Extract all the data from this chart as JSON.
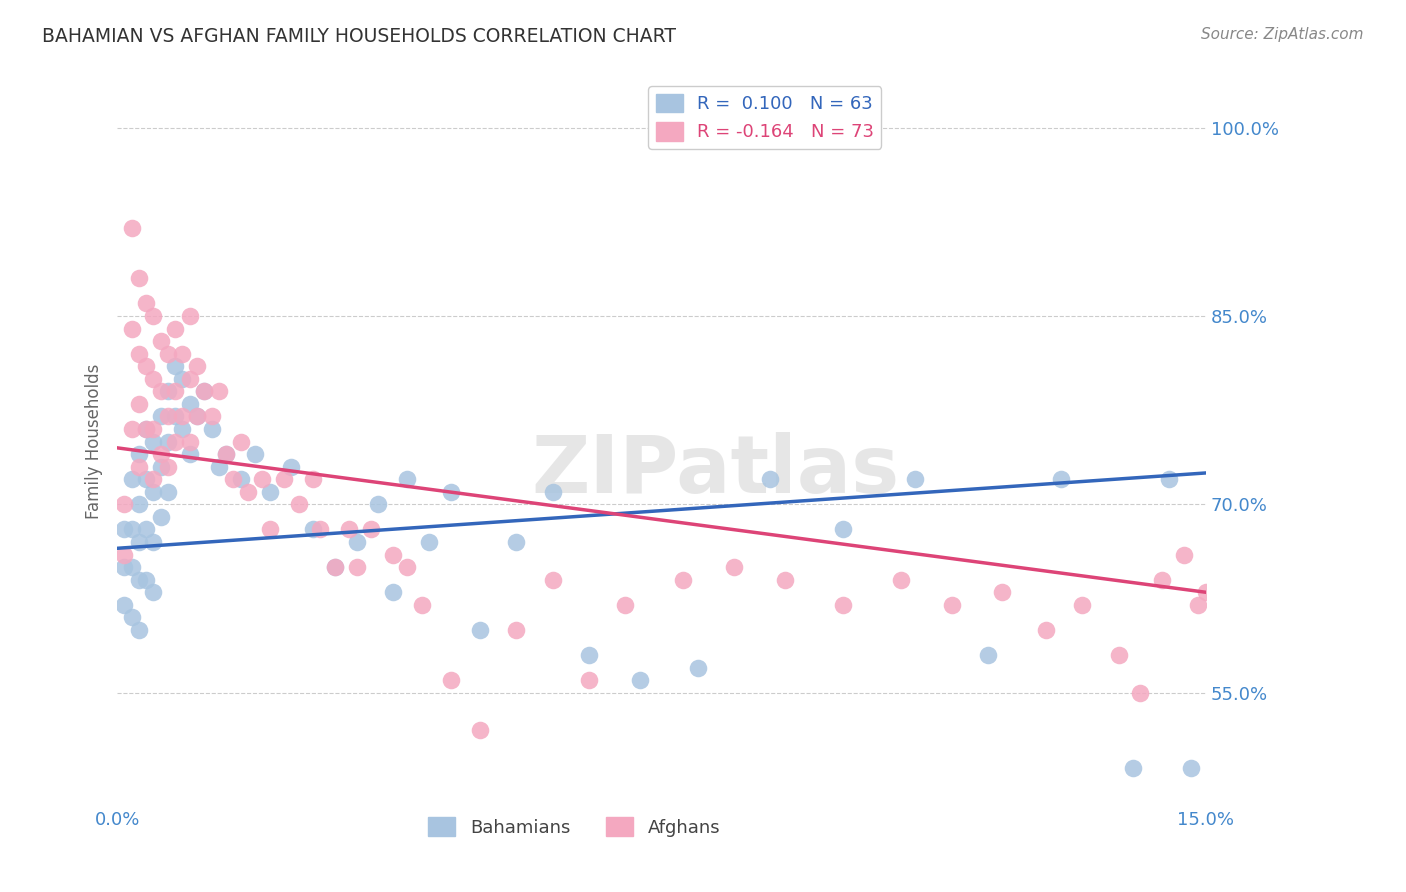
{
  "title": "BAHAMIAN VS AFGHAN FAMILY HOUSEHOLDS CORRELATION CHART",
  "source": "Source: ZipAtlas.com",
  "ylabel": "Family Households",
  "ytick_labels": [
    "55.0%",
    "70.0%",
    "85.0%",
    "100.0%"
  ],
  "ytick_vals": [
    0.55,
    0.7,
    0.85,
    1.0
  ],
  "xlim": [
    0.0,
    0.15
  ],
  "ylim": [
    0.46,
    1.04
  ],
  "blue_R": 0.1,
  "blue_N": 63,
  "pink_R": -0.164,
  "pink_N": 73,
  "blue_color": "#a8c4e0",
  "pink_color": "#f4a8c0",
  "blue_line_color": "#3366bb",
  "pink_line_color": "#dd4477",
  "watermark": "ZIPatlas",
  "background_color": "#ffffff",
  "grid_color": "#cccccc",
  "blue_x": [
    0.001,
    0.001,
    0.001,
    0.002,
    0.002,
    0.002,
    0.002,
    0.003,
    0.003,
    0.003,
    0.003,
    0.003,
    0.004,
    0.004,
    0.004,
    0.004,
    0.005,
    0.005,
    0.005,
    0.005,
    0.006,
    0.006,
    0.006,
    0.007,
    0.007,
    0.007,
    0.008,
    0.008,
    0.009,
    0.009,
    0.01,
    0.01,
    0.011,
    0.012,
    0.013,
    0.014,
    0.015,
    0.017,
    0.019,
    0.021,
    0.024,
    0.027,
    0.03,
    0.033,
    0.036,
    0.038,
    0.04,
    0.043,
    0.046,
    0.05,
    0.055,
    0.06,
    0.065,
    0.072,
    0.08,
    0.09,
    0.1,
    0.11,
    0.12,
    0.13,
    0.14,
    0.145,
    0.148
  ],
  "blue_y": [
    0.68,
    0.65,
    0.62,
    0.72,
    0.68,
    0.65,
    0.61,
    0.74,
    0.7,
    0.67,
    0.64,
    0.6,
    0.76,
    0.72,
    0.68,
    0.64,
    0.75,
    0.71,
    0.67,
    0.63,
    0.77,
    0.73,
    0.69,
    0.79,
    0.75,
    0.71,
    0.81,
    0.77,
    0.8,
    0.76,
    0.78,
    0.74,
    0.77,
    0.79,
    0.76,
    0.73,
    0.74,
    0.72,
    0.74,
    0.71,
    0.73,
    0.68,
    0.65,
    0.67,
    0.7,
    0.63,
    0.72,
    0.67,
    0.71,
    0.6,
    0.67,
    0.71,
    0.58,
    0.56,
    0.57,
    0.72,
    0.68,
    0.72,
    0.58,
    0.72,
    0.49,
    0.72,
    0.49
  ],
  "pink_x": [
    0.001,
    0.001,
    0.002,
    0.002,
    0.002,
    0.003,
    0.003,
    0.003,
    0.003,
    0.004,
    0.004,
    0.004,
    0.005,
    0.005,
    0.005,
    0.005,
    0.006,
    0.006,
    0.006,
    0.007,
    0.007,
    0.007,
    0.008,
    0.008,
    0.008,
    0.009,
    0.009,
    0.01,
    0.01,
    0.01,
    0.011,
    0.011,
    0.012,
    0.013,
    0.014,
    0.015,
    0.016,
    0.017,
    0.018,
    0.02,
    0.021,
    0.023,
    0.025,
    0.027,
    0.028,
    0.03,
    0.032,
    0.033,
    0.035,
    0.038,
    0.04,
    0.042,
    0.046,
    0.05,
    0.055,
    0.06,
    0.065,
    0.07,
    0.078,
    0.085,
    0.092,
    0.1,
    0.108,
    0.115,
    0.122,
    0.128,
    0.133,
    0.138,
    0.141,
    0.144,
    0.147,
    0.149,
    0.15
  ],
  "pink_y": [
    0.7,
    0.66,
    0.92,
    0.84,
    0.76,
    0.88,
    0.82,
    0.78,
    0.73,
    0.86,
    0.81,
    0.76,
    0.85,
    0.8,
    0.76,
    0.72,
    0.83,
    0.79,
    0.74,
    0.82,
    0.77,
    0.73,
    0.84,
    0.79,
    0.75,
    0.82,
    0.77,
    0.85,
    0.8,
    0.75,
    0.81,
    0.77,
    0.79,
    0.77,
    0.79,
    0.74,
    0.72,
    0.75,
    0.71,
    0.72,
    0.68,
    0.72,
    0.7,
    0.72,
    0.68,
    0.65,
    0.68,
    0.65,
    0.68,
    0.66,
    0.65,
    0.62,
    0.56,
    0.52,
    0.6,
    0.64,
    0.56,
    0.62,
    0.64,
    0.65,
    0.64,
    0.62,
    0.64,
    0.62,
    0.63,
    0.6,
    0.62,
    0.58,
    0.55,
    0.64,
    0.66,
    0.62,
    0.63
  ]
}
